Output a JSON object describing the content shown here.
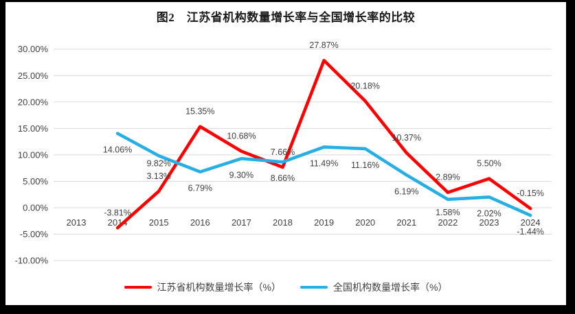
{
  "chart_data": {
    "type": "line",
    "title": "图2　江苏省机构数量增长率与全国增长率的比较",
    "categories": [
      "2013",
      "2014",
      "2015",
      "2016",
      "2017",
      "2018",
      "2019",
      "2020",
      "2021",
      "2022",
      "2023",
      "2024"
    ],
    "y_axis": {
      "tick_labels": [
        "30.00%",
        "25.00%",
        "20.00%",
        "15.00%",
        "10.00%",
        "5.00%",
        "0.00%",
        "-5.00%",
        "-10.00%"
      ],
      "min": -10,
      "max": 30,
      "step": 5
    },
    "grid": true,
    "legend_position": "bottom",
    "colors": {
      "jiangsu": "#FE0000",
      "national": "#27AEE3",
      "gridline": "#D9D9D9",
      "label_text": "#404040"
    },
    "series": [
      {
        "name": "江苏省机构数量增长率（%）",
        "color": "#FE0000",
        "values": [
          null,
          -3.81,
          3.13,
          15.35,
          10.68,
          7.66,
          27.87,
          20.18,
          10.37,
          2.89,
          5.5,
          -0.15
        ],
        "data_labels": [
          null,
          "-3.81%",
          "3.13%",
          "15.35%",
          "10.68%",
          "7.66%",
          "27.87%",
          "20.18%",
          "10.37%",
          "2.89%",
          "5.50%",
          "-0.15%"
        ]
      },
      {
        "name": "全国机构数量增长率（%）",
        "color": "#27AEE3",
        "values": [
          null,
          14.06,
          9.82,
          6.79,
          9.3,
          8.66,
          11.49,
          11.16,
          6.19,
          1.58,
          2.02,
          -1.44
        ],
        "data_labels": [
          null,
          "14.06%",
          "9.82%",
          "6.79%",
          "9.30%",
          "8.66%",
          "11.49%",
          "11.16%",
          "6.19%",
          "1.58%",
          "2.02%",
          "-1.44%"
        ]
      }
    ]
  }
}
